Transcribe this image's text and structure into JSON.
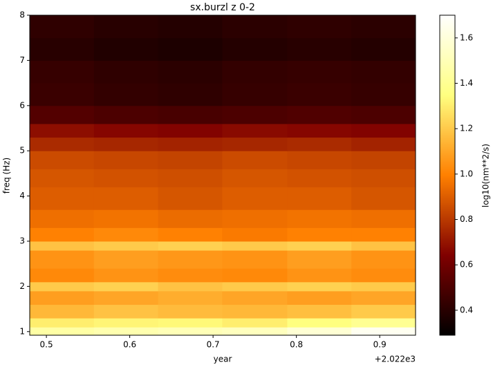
{
  "chart_data": {
    "type": "heatmap",
    "title": "sx.burzl z 0-2",
    "xlabel": "year",
    "ylabel": "freq (Hz)",
    "x_offset_text": "+2.022e3",
    "colorbar_label": "log10(nm**2/s)",
    "colormap": "afmhot",
    "xlim": [
      0.48,
      0.943
    ],
    "xticks": [
      0.5,
      0.6,
      0.7,
      0.8,
      0.9
    ],
    "ylim": [
      0.92,
      8
    ],
    "yticks": [
      1,
      2,
      3,
      4,
      5,
      6,
      7,
      8
    ],
    "clim": [
      0.29,
      1.7
    ],
    "cticks": [
      0.4,
      0.6,
      0.8,
      {
        "value": 1,
        "label": "1.0"
      },
      1.2,
      1.4,
      1.6
    ],
    "x_edges": [
      0.48,
      0.557,
      0.634,
      0.711,
      0.789,
      0.866,
      0.943
    ],
    "y_edges": [
      0.92,
      1.1,
      1.3,
      1.6,
      1.9,
      2.1,
      2.4,
      2.8,
      3.0,
      3.3,
      3.7,
      4.2,
      4.6,
      5.0,
      5.3,
      5.6,
      6.0,
      6.5,
      7.0,
      7.5,
      8.0
    ],
    "z": [
      [
        1.45,
        1.48,
        1.5,
        1.52,
        1.58,
        1.66
      ],
      [
        1.3,
        1.32,
        1.33,
        1.3,
        1.35,
        1.4
      ],
      [
        1.15,
        1.18,
        1.16,
        1.15,
        1.17,
        1.2
      ],
      [
        1.08,
        1.1,
        1.12,
        1.1,
        1.08,
        1.1
      ],
      [
        1.2,
        1.22,
        1.18,
        1.2,
        1.22,
        1.2
      ],
      [
        1.02,
        1.05,
        1.03,
        1.02,
        1.05,
        1.03
      ],
      [
        1.05,
        1.08,
        1.06,
        1.05,
        1.08,
        1.05
      ],
      [
        1.18,
        1.2,
        1.22,
        1.2,
        1.22,
        1.18
      ],
      [
        1.0,
        1.02,
        1.0,
        0.98,
        1.0,
        1.0
      ],
      [
        0.95,
        0.96,
        0.94,
        0.95,
        0.96,
        0.95
      ],
      [
        0.9,
        0.9,
        0.88,
        0.9,
        0.9,
        0.88
      ],
      [
        0.88,
        0.87,
        0.86,
        0.88,
        0.87,
        0.86
      ],
      [
        0.85,
        0.84,
        0.83,
        0.85,
        0.84,
        0.83
      ],
      [
        0.76,
        0.75,
        0.74,
        0.75,
        0.76,
        0.74
      ],
      [
        0.68,
        0.66,
        0.65,
        0.67,
        0.66,
        0.65
      ],
      [
        0.52,
        0.5,
        0.49,
        0.5,
        0.51,
        0.5
      ],
      [
        0.45,
        0.43,
        0.42,
        0.44,
        0.45,
        0.44
      ],
      [
        0.44,
        0.42,
        0.41,
        0.43,
        0.44,
        0.43
      ],
      [
        0.4,
        0.38,
        0.37,
        0.39,
        0.4,
        0.39
      ],
      [
        0.42,
        0.4,
        0.39,
        0.41,
        0.42,
        0.41
      ]
    ]
  }
}
